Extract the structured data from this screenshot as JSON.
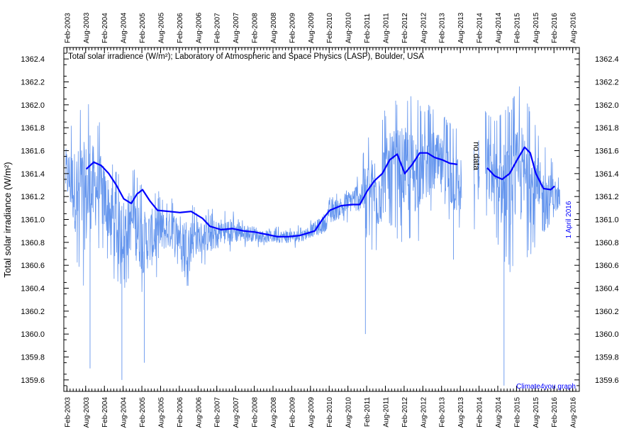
{
  "chart_data": {
    "type": "line",
    "title": "Total solar irradience (W/m²); Laboratory of Atmospheric and Space Physics (LASP), Boulder, USA",
    "ylabel": "Total solar irradiance (W/m²)",
    "xlabel": "",
    "ylim": [
      1359.5,
      1362.5
    ],
    "y_ticks": [
      "1359.6",
      "1359.8",
      "1360.0",
      "1360.2",
      "1360.4",
      "1360.6",
      "1360.8",
      "1361.0",
      "1361.2",
      "1361.4",
      "1361.6",
      "1361.8",
      "1362.0",
      "1362.2",
      "1362.4"
    ],
    "x_ticks": [
      "Feb-2003",
      "Aug-2003",
      "Feb-2004",
      "Aug-2004",
      "Feb-2005",
      "Aug-2005",
      "Feb-2006",
      "Aug-2006",
      "Feb-2007",
      "Aug-2007",
      "Feb-2008",
      "Aug-2008",
      "Feb-2009",
      "Aug-2009",
      "Feb-2010",
      "Aug-2010",
      "Feb-2011",
      "Aug-2011",
      "Feb-2012",
      "Aug-2012",
      "Feb-2013",
      "Aug-2013",
      "Feb-2014",
      "Aug-2014",
      "Feb-2015",
      "Aug-2015",
      "Feb-2016",
      "Aug-2016"
    ],
    "annotations": {
      "no_data": "no data",
      "date": "1 April 2016",
      "credit": "Climate4you graph"
    },
    "colors": {
      "daily": "#6495ED",
      "smooth": "#0000FF"
    },
    "series": [
      {
        "kind": "daily_envelope",
        "x": [
          2003.08,
          2003.3,
          2003.6,
          2003.9,
          2004.2,
          2004.5,
          2004.8,
          2005.1,
          2005.4,
          2005.7,
          2006.0,
          2006.3,
          2006.6,
          2006.9,
          2007.2,
          2007.5,
          2007.8,
          2008.1,
          2008.4,
          2008.7,
          2009.0,
          2009.3,
          2009.6,
          2009.9,
          2010.2,
          2010.5,
          2010.8,
          2011.1,
          2011.4,
          2011.7,
          2012.0,
          2012.3,
          2012.6,
          2012.9,
          2013.2,
          2013.5,
          2014.3,
          2014.6,
          2014.9,
          2015.2,
          2015.5,
          2015.8,
          2016.1,
          2016.25
        ],
        "high": [
          1361.8,
          1361.9,
          1362.1,
          1361.9,
          1361.6,
          1361.4,
          1361.5,
          1361.3,
          1361.3,
          1361.2,
          1361.2,
          1361.2,
          1361.1,
          1361.1,
          1361.1,
          1361.1,
          1361.0,
          1361.0,
          1360.95,
          1360.95,
          1360.95,
          1360.95,
          1361.0,
          1361.1,
          1361.25,
          1361.3,
          1361.4,
          1361.7,
          1361.9,
          1362.0,
          1362.1,
          1362.1,
          1362.0,
          1362.0,
          1361.9,
          1361.8,
          1362.0,
          1361.9,
          1362.0,
          1362.2,
          1361.9,
          1361.7,
          1361.5,
          1361.4
        ],
        "low": [
          1361.0,
          1360.6,
          1360.3,
          1360.7,
          1360.6,
          1360.3,
          1360.5,
          1360.3,
          1360.4,
          1360.6,
          1360.6,
          1360.4,
          1360.6,
          1360.6,
          1360.7,
          1360.7,
          1360.75,
          1360.75,
          1360.75,
          1360.75,
          1360.75,
          1360.75,
          1360.8,
          1360.8,
          1360.9,
          1360.95,
          1361.0,
          1360.8,
          1360.6,
          1360.9,
          1360.8,
          1360.7,
          1360.9,
          1361.0,
          1360.9,
          1360.8,
          1360.9,
          1360.7,
          1360.5,
          1360.6,
          1360.7,
          1360.6,
          1360.9,
          1361.0
        ]
      },
      {
        "kind": "smoothed",
        "segments": [
          {
            "x": [
              2003.6,
              2003.8,
              2004.0,
              2004.2,
              2004.4,
              2004.6,
              2004.8,
              2004.95,
              2005.1,
              2005.3,
              2005.5,
              2005.8,
              2006.1,
              2006.4,
              2006.7,
              2006.9,
              2007.2,
              2007.5,
              2007.8,
              2008.1,
              2008.4,
              2008.7,
              2009.0,
              2009.3,
              2009.5,
              2009.7,
              2009.9,
              2010.1,
              2010.4,
              2010.7,
              2010.9,
              2011.1,
              2011.3,
              2011.5,
              2011.7,
              2011.9,
              2012.1,
              2012.3,
              2012.5,
              2012.7,
              2012.9,
              2013.1,
              2013.3,
              2013.5
            ],
            "y": [
              1361.44,
              1361.5,
              1361.47,
              1361.4,
              1361.3,
              1361.18,
              1361.14,
              1361.22,
              1361.26,
              1361.16,
              1361.08,
              1361.07,
              1361.06,
              1361.07,
              1361.01,
              1360.94,
              1360.91,
              1360.92,
              1360.9,
              1360.89,
              1360.87,
              1360.85,
              1360.85,
              1360.86,
              1360.88,
              1360.9,
              1361.0,
              1361.08,
              1361.12,
              1361.13,
              1361.13,
              1361.25,
              1361.34,
              1361.4,
              1361.52,
              1361.57,
              1361.4,
              1361.48,
              1361.58,
              1361.58,
              1361.54,
              1361.52,
              1361.49,
              1361.48
            ]
          },
          {
            "x": [
              2014.3,
              2014.5,
              2014.7,
              2014.9,
              2015.1,
              2015.3,
              2015.45,
              2015.6,
              2015.8,
              2016.0,
              2016.1
            ],
            "y": [
              1361.45,
              1361.38,
              1361.35,
              1361.4,
              1361.52,
              1361.63,
              1361.58,
              1361.4,
              1361.27,
              1361.26,
              1361.29
            ]
          }
        ]
      }
    ]
  }
}
